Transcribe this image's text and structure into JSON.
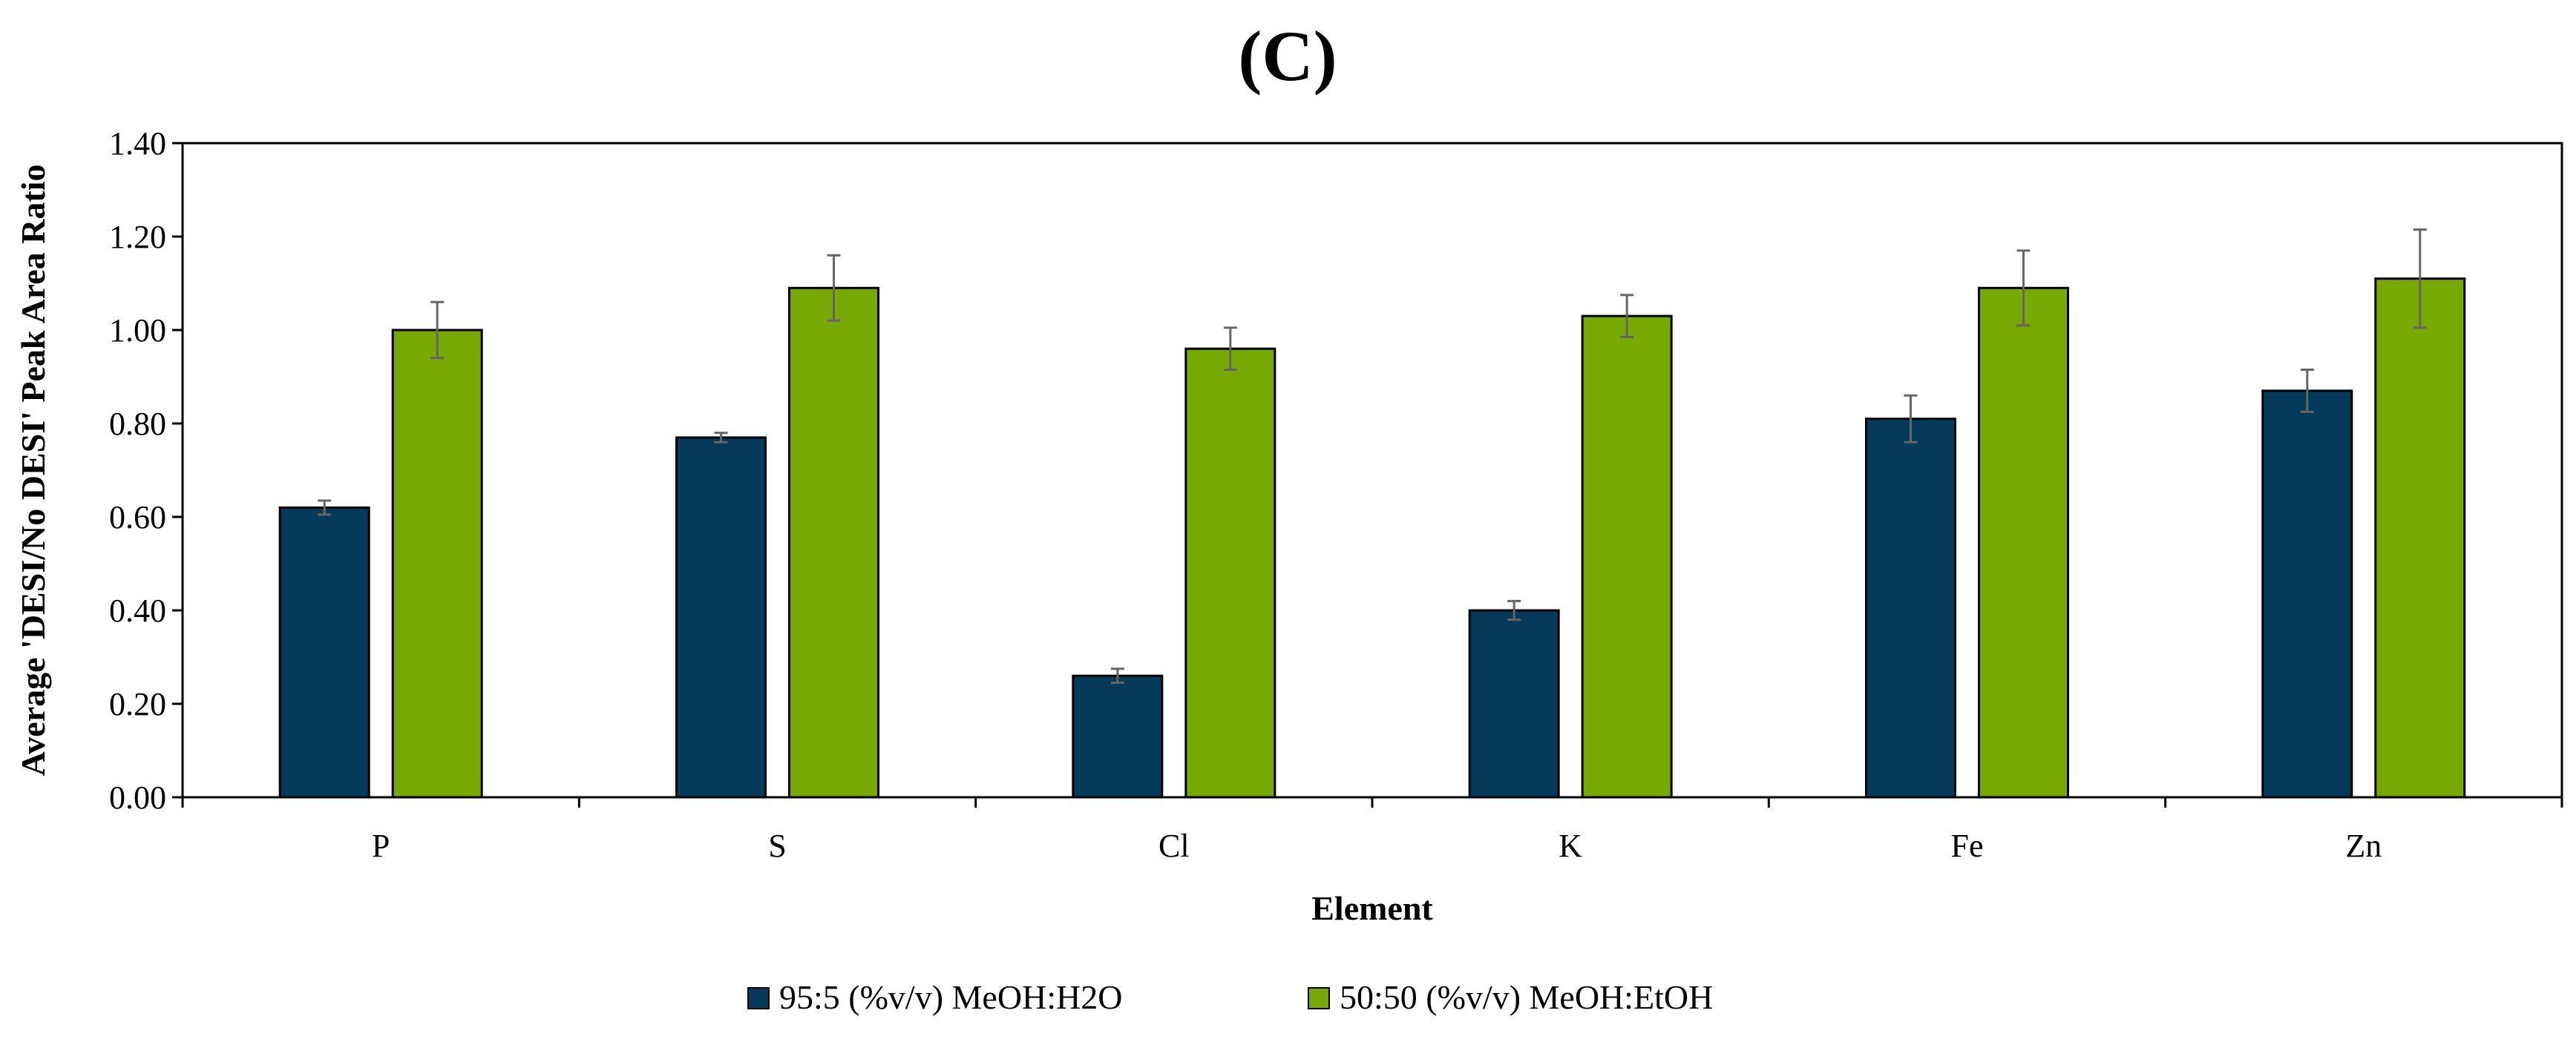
{
  "chart_data": {
    "type": "bar",
    "title": "(C)",
    "xlabel": "Element",
    "ylabel": "Average 'DESI/No DESI' Peak Area Ratio",
    "categories": [
      "P",
      "S",
      "Cl",
      "K",
      "Fe",
      "Zn"
    ],
    "ylim": [
      0,
      1.4
    ],
    "yticks": [
      "0.00",
      "0.20",
      "0.40",
      "0.60",
      "0.80",
      "1.00",
      "1.20",
      "1.40"
    ],
    "series": [
      {
        "name": "95:5 (%v/v) MeOH:H2O",
        "color": "#053A5A",
        "values": [
          0.62,
          0.77,
          0.26,
          0.4,
          0.81,
          0.87
        ],
        "errors": [
          0.015,
          0.01,
          0.015,
          0.02,
          0.05,
          0.045
        ]
      },
      {
        "name": "50:50 (%v/v) MeOH:EtOH",
        "color": "#77A804",
        "values": [
          1.0,
          1.09,
          0.96,
          1.03,
          1.09,
          1.11
        ],
        "errors": [
          0.06,
          0.07,
          0.045,
          0.045,
          0.08,
          0.105
        ]
      }
    ],
    "legend_position": "bottom"
  }
}
